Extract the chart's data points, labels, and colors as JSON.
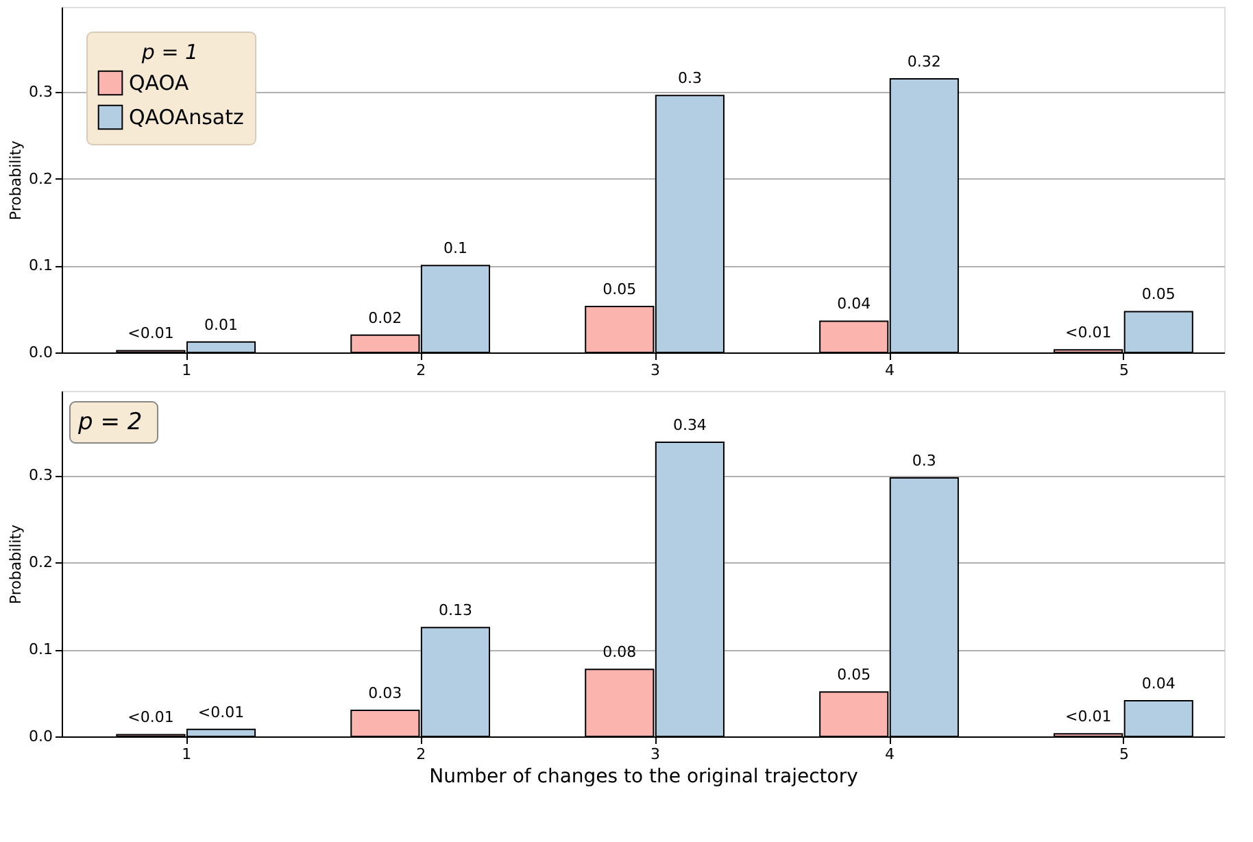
{
  "chart_data": [
    {
      "type": "bar",
      "x": [
        1,
        2,
        3,
        4,
        5
      ],
      "ylabel": "Probability",
      "legend_title": "p = 1",
      "legend": "top left",
      "grid": "y",
      "xlim": [
        0.47,
        5.43
      ],
      "xticks": [
        1,
        2,
        3,
        4,
        5
      ],
      "ylim": [
        0,
        0.398
      ],
      "yticks": [
        {
          "value": 0,
          "label": "0.0"
        },
        0.1,
        0.2,
        0.3
      ],
      "series": [
        {
          "name": "QAOA",
          "color": "#fbb4ae",
          "values": [
            0.002,
            0.02,
            0.053,
            0.036,
            0.003
          ],
          "value_labels": [
            "<0.01",
            "0.02",
            "0.05",
            "0.04",
            "<0.01"
          ]
        },
        {
          "name": "QAOAnsatz",
          "color": "#b3cde3",
          "values": [
            0.012,
            0.1,
            0.296,
            0.315,
            0.047
          ],
          "value_labels": [
            "0.01",
            "0.1",
            "0.3",
            "0.32",
            "0.05"
          ]
        }
      ]
    },
    {
      "type": "bar",
      "x": [
        1,
        2,
        3,
        4,
        5
      ],
      "ylabel": "Probability",
      "xlabel": "Number of changes to the original trajectory",
      "annotations": [
        "p = 2"
      ],
      "grid": "y",
      "xlim": [
        0.47,
        5.43
      ],
      "xticks": [
        1,
        2,
        3,
        4,
        5
      ],
      "ylim": [
        0,
        0.397
      ],
      "yticks": [
        {
          "value": 0,
          "label": "0.0"
        },
        0.1,
        0.2,
        0.3
      ],
      "series": [
        {
          "name": "QAOA",
          "color": "#fbb4ae",
          "values": [
            0.002,
            0.03,
            0.077,
            0.051,
            0.003
          ],
          "value_labels": [
            "<0.01",
            "0.03",
            "0.08",
            "0.05",
            "<0.01"
          ]
        },
        {
          "name": "QAOAnsatz",
          "color": "#b3cde3",
          "values": [
            0.008,
            0.125,
            0.338,
            0.297,
            0.041
          ],
          "value_labels": [
            "<0.01",
            "0.13",
            "0.34",
            "0.3",
            "0.04"
          ]
        }
      ]
    }
  ]
}
